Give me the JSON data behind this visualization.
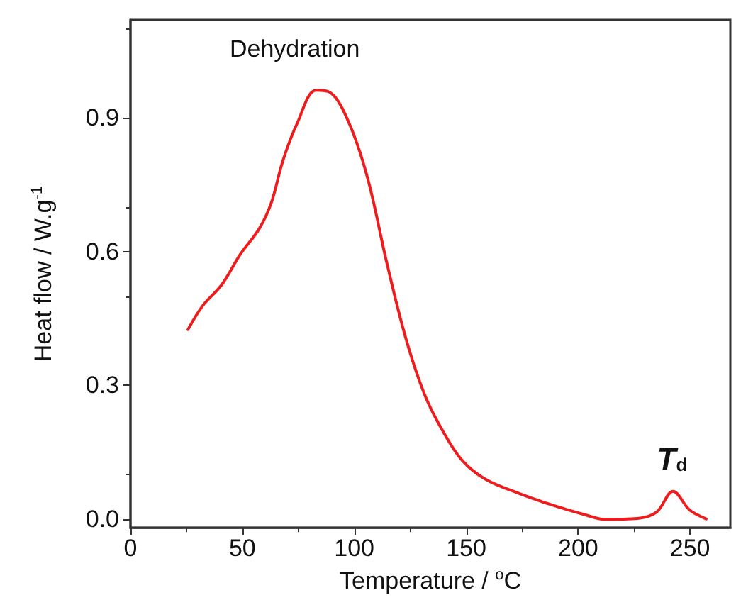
{
  "chart_data": {
    "type": "line",
    "xlabel": "Temperature / $^{o}$C",
    "ylabel": "Heat flow / W.g$^{-1}$",
    "annotations": [
      "Dehydration",
      {
        "text": "T$_{d}$",
        "x": 242,
        "y": 0.062
      }
    ],
    "x": [
      25.7,
      32.2,
      40.7,
      49.1,
      57.5,
      62.9,
      68.1,
      74.5,
      82.9,
      89.2,
      97.7,
      106.1,
      114.6,
      123.1,
      131.5,
      139.9,
      148.4,
      158.9,
      173.7,
      188.5,
      203.3,
      211.8,
      226.5,
      235,
      242.4,
      249.8,
      257.2
    ],
    "series": [
      {
        "color": "#ee1c1c",
        "values": [
          0.425,
          0.478,
          0.525,
          0.594,
          0.651,
          0.709,
          0.804,
          0.888,
          0.962,
          0.957,
          0.888,
          0.762,
          0.573,
          0.404,
          0.278,
          0.194,
          0.13,
          0.088,
          0.057,
          0.031,
          0.009,
          -0.001,
          0.001,
          0.015,
          0.062,
          0.02,
          0.0
        ]
      }
    ],
    "xlim": [
      0,
      268
    ],
    "xticks": [
      0,
      50,
      100,
      150,
      200,
      250
    ],
    "ylim": [
      -0.02,
      1.12
    ],
    "yticks": [
      {
        "value": 0,
        "label": "0.0"
      },
      {
        "value": 0.3,
        "label": "0.3"
      },
      {
        "value": 0.6,
        "label": "0.6"
      },
      {
        "value": 0.9,
        "label": "0.9"
      }
    ],
    "grid": false,
    "marker": "none",
    "line_style": "solid"
  }
}
